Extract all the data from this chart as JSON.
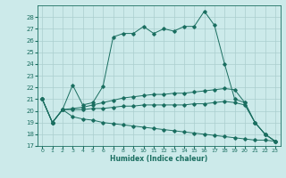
{
  "xlabel": "Humidex (Indice chaleur)",
  "bg_color": "#cceaea",
  "grid_color": "#aacece",
  "line_color": "#1a6e60",
  "xlim": [
    -0.5,
    23.5
  ],
  "ylim": [
    17,
    29
  ],
  "yticks": [
    17,
    18,
    19,
    20,
    21,
    22,
    23,
    24,
    25,
    26,
    27,
    28
  ],
  "xticks": [
    0,
    1,
    2,
    3,
    4,
    5,
    6,
    7,
    8,
    9,
    10,
    11,
    12,
    13,
    14,
    15,
    16,
    17,
    18,
    19,
    20,
    21,
    22,
    23
  ],
  "curve1_x": [
    0,
    1,
    2,
    3,
    4,
    5,
    6,
    7,
    8,
    9,
    10,
    11,
    12,
    13,
    14,
    15,
    16,
    17,
    18,
    19,
    20,
    21,
    22,
    23
  ],
  "curve1_y": [
    21.0,
    19.0,
    20.1,
    22.2,
    20.5,
    20.7,
    22.1,
    26.3,
    26.6,
    26.6,
    27.2,
    26.6,
    27.0,
    26.8,
    27.2,
    27.2,
    28.5,
    27.3,
    24.0,
    21.0,
    20.7,
    19.0,
    18.0,
    17.4
  ],
  "curve2_x": [
    0,
    1,
    2,
    3,
    4,
    5,
    6,
    7,
    8,
    9,
    10,
    11,
    12,
    13,
    14,
    15,
    16,
    17,
    18,
    19,
    20,
    21,
    22,
    23
  ],
  "curve2_y": [
    21.0,
    19.0,
    20.1,
    20.2,
    20.3,
    20.5,
    20.7,
    20.9,
    21.1,
    21.2,
    21.3,
    21.4,
    21.4,
    21.5,
    21.5,
    21.6,
    21.7,
    21.8,
    21.9,
    21.8,
    20.7,
    19.0,
    18.0,
    17.4
  ],
  "curve3_x": [
    0,
    1,
    2,
    3,
    4,
    5,
    6,
    7,
    8,
    9,
    10,
    11,
    12,
    13,
    14,
    15,
    16,
    17,
    18,
    19,
    20,
    21,
    22,
    23
  ],
  "curve3_y": [
    21.0,
    19.0,
    20.1,
    20.1,
    20.1,
    20.2,
    20.2,
    20.3,
    20.4,
    20.4,
    20.5,
    20.5,
    20.5,
    20.5,
    20.5,
    20.6,
    20.6,
    20.7,
    20.8,
    20.7,
    20.5,
    19.0,
    18.0,
    17.4
  ],
  "curve4_x": [
    0,
    1,
    2,
    3,
    4,
    5,
    6,
    7,
    8,
    9,
    10,
    11,
    12,
    13,
    14,
    15,
    16,
    17,
    18,
    19,
    20,
    21,
    22,
    23
  ],
  "curve4_y": [
    21.0,
    19.0,
    20.1,
    19.5,
    19.3,
    19.2,
    19.0,
    18.9,
    18.8,
    18.7,
    18.6,
    18.5,
    18.4,
    18.3,
    18.2,
    18.1,
    18.0,
    17.9,
    17.8,
    17.7,
    17.6,
    17.5,
    17.5,
    17.4
  ]
}
